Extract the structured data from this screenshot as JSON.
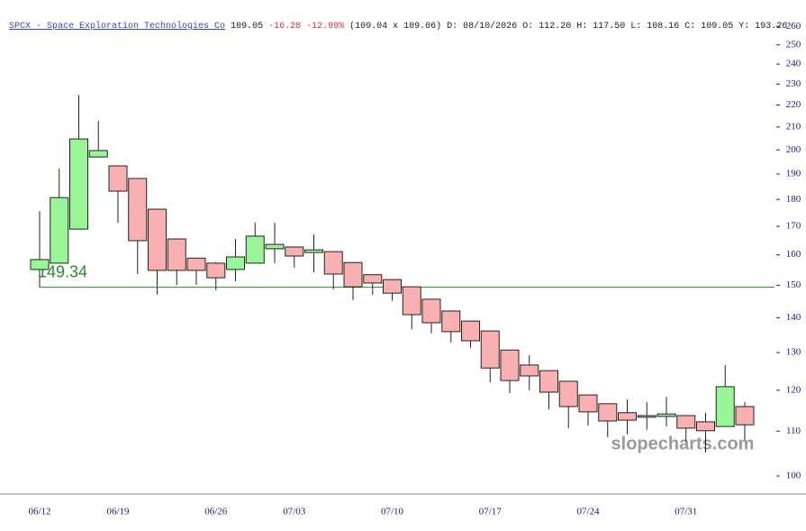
{
  "chart_data": {
    "type": "candlestick",
    "header": {
      "symbol": "SPCX - Space Exploration Technologies Co",
      "last": "109.05",
      "change": "-16.28",
      "change_pct": "-12.99%",
      "quote": "(109.04 x 109.06) D: 08/10/2026 O: 112.20 H: 117.50 L: 108.16 C: 109.05 Y: 193.26"
    },
    "categories": [
      "06/12",
      null,
      null,
      null,
      "06/19",
      null,
      null,
      null,
      null,
      "06/26",
      null,
      null,
      null,
      "07/03",
      null,
      null,
      null,
      null,
      "07/10",
      null,
      null,
      null,
      null,
      "07/17",
      null,
      null,
      null,
      null,
      "07/24",
      null,
      null,
      null,
      null,
      "07/31",
      null,
      null,
      null
    ],
    "open": [
      155.1,
      157.2,
      169.0,
      197.0,
      193.3,
      188.2,
      176.3,
      165.5,
      158.9,
      157.2,
      155.1,
      157.2,
      162.1,
      162.7,
      160.8,
      161.1,
      157.4,
      153.4,
      151.8,
      149.5,
      145.6,
      142.0,
      139.0,
      136.1,
      130.7,
      126.6,
      125.1,
      122.3,
      118.8,
      116.6,
      114.4,
      113.7,
      113.5,
      113.7,
      112.2,
      111.1,
      115.9
    ],
    "high": [
      175.6,
      192.2,
      224.8,
      212.7,
      193.3,
      188.2,
      176.3,
      165.5,
      158.9,
      157.6,
      165.5,
      171.3,
      171.3,
      162.7,
      167.1,
      161.1,
      157.4,
      153.4,
      151.8,
      149.5,
      145.6,
      142.0,
      139.0,
      136.1,
      130.7,
      129.3,
      125.1,
      122.3,
      118.8,
      116.6,
      117.7,
      117.0,
      118.3,
      113.7,
      114.4,
      126.6,
      117.0
    ],
    "low": [
      149.34,
      157.2,
      169.0,
      197.0,
      171.3,
      153.6,
      147.0,
      150.1,
      150.1,
      148.4,
      151.3,
      157.2,
      157.2,
      155.7,
      154.2,
      148.7,
      145.3,
      147.0,
      145.1,
      136.6,
      135.4,
      132.8,
      131.3,
      122.0,
      119.3,
      120.0,
      115.2,
      110.7,
      111.3,
      108.6,
      109.3,
      110.3,
      111.1,
      107.5,
      105.1,
      111.1,
      108.0
    ],
    "close": [
      158.4,
      180.7,
      204.7,
      199.7,
      183.2,
      164.9,
      154.8,
      154.8,
      154.8,
      152.4,
      159.3,
      166.5,
      163.6,
      159.6,
      161.7,
      153.6,
      149.5,
      150.7,
      147.5,
      140.9,
      138.5,
      135.9,
      133.3,
      125.8,
      122.5,
      123.7,
      119.5,
      115.9,
      114.6,
      112.4,
      112.6,
      113.3,
      114.1,
      110.7,
      110.1,
      120.9,
      111.5
    ],
    "up_color": "#98f598",
    "down_color": "#f9b0b0",
    "log_scale": true,
    "ylim": [
      96,
      262
    ],
    "yticks": [
      100,
      110,
      120,
      130,
      140,
      150,
      160,
      170,
      180,
      190,
      200,
      210,
      220,
      230,
      240,
      250,
      260
    ],
    "reference_line": {
      "value": 149.34,
      "color": "#2a8a2a"
    },
    "watermark": "slopecharts.com"
  }
}
